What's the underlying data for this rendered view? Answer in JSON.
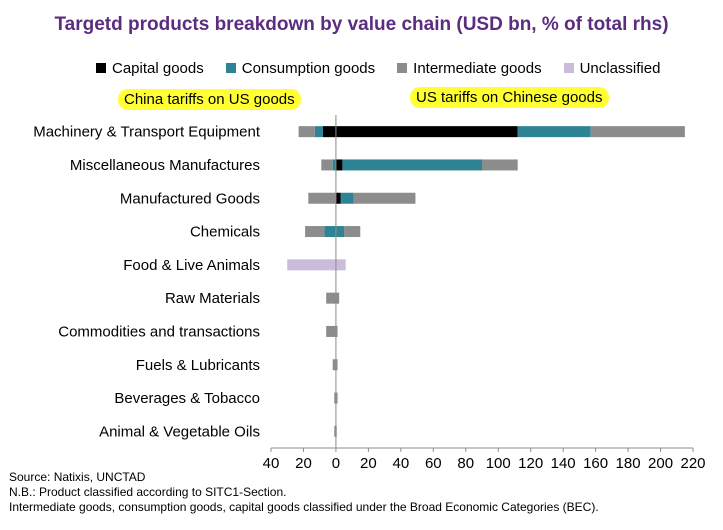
{
  "chart_data": {
    "type": "bar",
    "orientation": "horizontal",
    "stacked": true,
    "title": "Targetd products breakdown by value chain (USD bn, % of total rhs)",
    "categories": [
      "Machinery & Transport Equipment",
      "Miscellaneous Manufactures",
      "Manufactured Goods",
      "Chemicals",
      "Food & Live Animals",
      "Raw Materials",
      "Commodities and transactions",
      "Fuels & Lubricants",
      "Beverages & Tobacco",
      "Animal & Vegetable Oils"
    ],
    "series": [
      {
        "name": "Capital goods",
        "color": "#000000",
        "china_on_us": [
          -8,
          0,
          0,
          0,
          0,
          0,
          0,
          0,
          0,
          0
        ],
        "us_on_china": [
          112,
          4,
          3,
          0,
          0,
          0,
          0,
          0,
          0,
          0
        ]
      },
      {
        "name": "Consumption goods",
        "color": "#2e8495",
        "china_on_us": [
          -5,
          -2,
          0,
          -7,
          0,
          0,
          0,
          0,
          0,
          0
        ],
        "us_on_china": [
          45,
          86,
          8,
          5,
          0,
          0,
          0,
          0,
          0,
          0
        ]
      },
      {
        "name": "Intermediate goods",
        "color": "#8c8c8c",
        "china_on_us": [
          -10,
          -7,
          -17,
          -12,
          0,
          -6,
          -6,
          -2,
          -1,
          -1
        ],
        "us_on_china": [
          58,
          22,
          38,
          10,
          0,
          2,
          1,
          1,
          1,
          0.5
        ]
      },
      {
        "name": "Unclassified",
        "color": "#cbbcdc",
        "china_on_us": [
          0,
          0,
          0,
          0,
          -30,
          0,
          0,
          0,
          0,
          0
        ],
        "us_on_china": [
          0,
          0,
          0,
          0,
          6,
          0,
          0,
          0,
          0,
          0
        ]
      }
    ],
    "x_tick_labels": [
      "40",
      "20",
      "0",
      "20",
      "40",
      "60",
      "80",
      "100",
      "120",
      "140",
      "160",
      "180",
      "200",
      "220"
    ],
    "xlim": [
      -40,
      220
    ],
    "grid": false,
    "legend_position": "top",
    "annotations": {
      "left": "China tariffs on US goods",
      "right": "US tariffs on Chinese goods"
    }
  },
  "footnotes": {
    "source": "Source: Natixis, UNCTAD",
    "nb": "N.B.: Product classified according to SITC1-Section.",
    "bec": "Intermediate goods, consumption goods, capital goods classified under the Broad Economic Categories (BEC)."
  }
}
